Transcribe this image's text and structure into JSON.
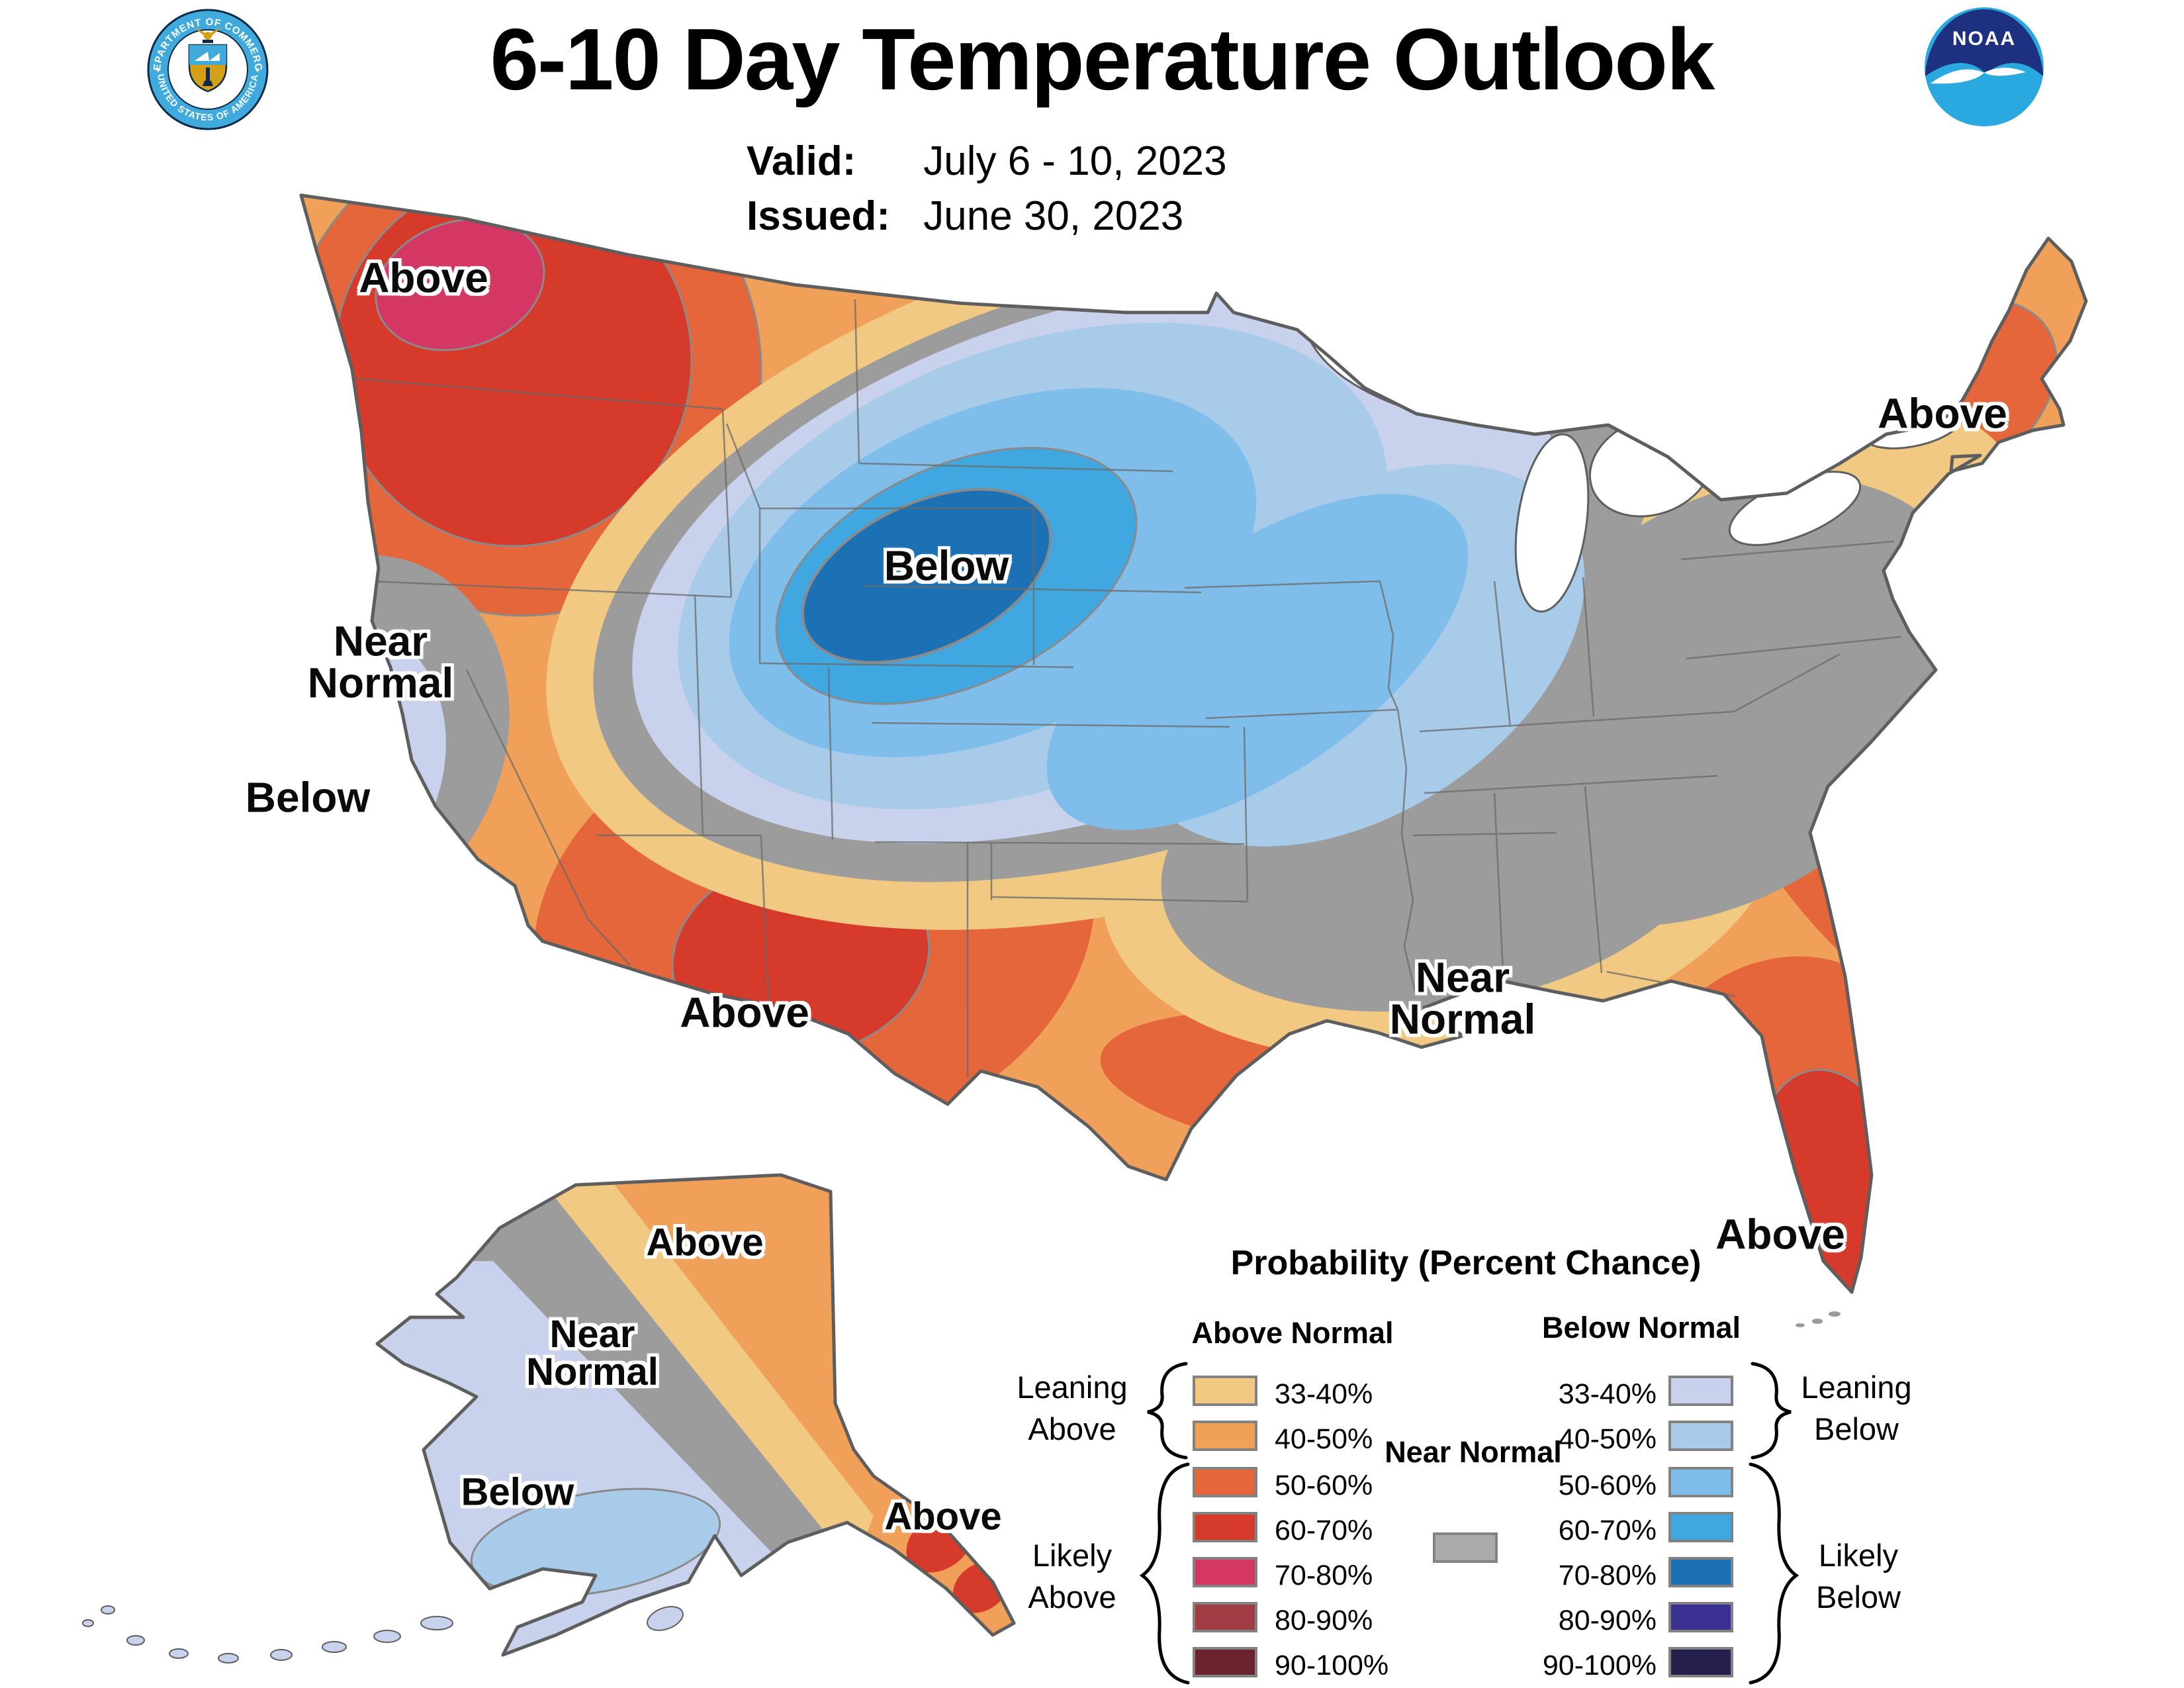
{
  "header": {
    "title": "6-10 Day Temperature Outlook",
    "valid_label": "Valid:",
    "valid_value": "July 6 - 10, 2023",
    "issued_label": "Issued:",
    "issued_value": "June 30, 2023"
  },
  "logos": {
    "noaa_text": "NOAA",
    "doc_top_text": "DEPARTMENT OF COMMERCE",
    "doc_bottom_text": "UNITED STATES OF AMERICA"
  },
  "map": {
    "labels": {
      "pnw_above": "Above",
      "ca_near_normal": "Near Normal",
      "ca_below": "Below",
      "center_below": "Below",
      "sw_above": "Above",
      "south_near_normal": "Near Normal",
      "ne_above": "Above",
      "fl_above": "Above",
      "ak_above": "Above",
      "ak_near_normal": "Near Normal",
      "ak_below": "Below",
      "ak_se_above": "Above"
    }
  },
  "legend": {
    "title": "Probability (Percent Chance)",
    "above_header": "Above Normal",
    "below_header": "Below Normal",
    "near_normal_label": "Near Normal",
    "bins": [
      "33-40%",
      "40-50%",
      "50-60%",
      "60-70%",
      "70-80%",
      "80-90%",
      "90-100%"
    ],
    "groups": {
      "leaning_above": "Leaning Above",
      "likely_above": "Likely Above",
      "leaning_below": "Leaning Below",
      "likely_below": "Likely Below"
    }
  },
  "colors": {
    "above": {
      "p33": "#F1C983",
      "p40": "#F0A059",
      "p50": "#E4663A",
      "p60": "#D63A2B",
      "p70": "#D43763",
      "p80": "#A03C44",
      "p90": "#6B242D"
    },
    "below": {
      "p33": "#C9D2ED",
      "p40": "#A9CBEA",
      "p50": "#7FBEEA",
      "p60": "#41A7E0",
      "p70": "#1C70B4",
      "p80": "#3A3192",
      "p90": "#251F4D"
    },
    "near_normal": "#ABABAB",
    "map_style": {
      "gray_band": "#9C9C9C",
      "coast": "#5E5E5E",
      "state_line": "#6A6A6A",
      "contour": "#8A8A8A",
      "water": "#FFFFFF",
      "brace": "#000000"
    },
    "noaa": {
      "dark": "#1E3080",
      "light": "#2AA9E0",
      "text": "#FFFFFF"
    },
    "doc": {
      "ring": "#41AADC",
      "gold": "#D4A017",
      "navy": "#0E2A47",
      "text": "#FFFFFF"
    }
  }
}
